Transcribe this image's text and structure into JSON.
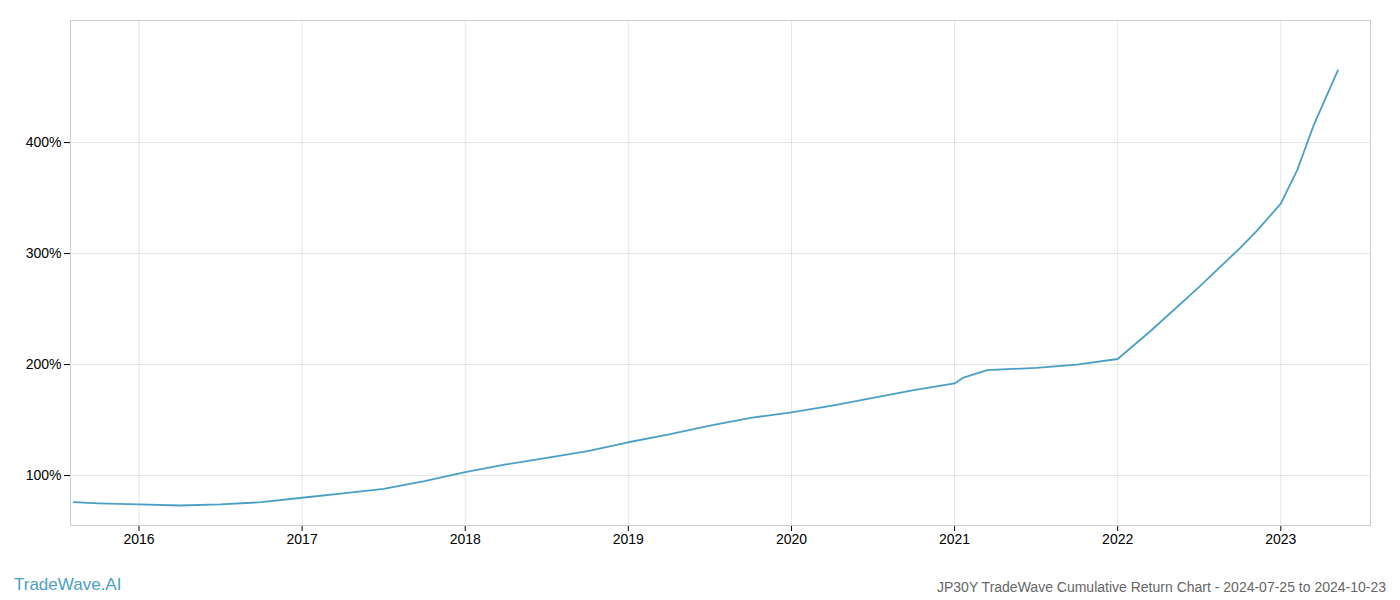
{
  "chart_data": {
    "type": "line",
    "title": "JP30Y TradeWave Cumulative Return Chart - 2024-07-25 to 2024-10-23",
    "annotations": [
      {
        "text": "TradeWave.AI",
        "color": "#4a9fc4"
      }
    ],
    "x": [
      2015.6,
      2015.75,
      2016.0,
      2016.25,
      2016.5,
      2016.75,
      2017.0,
      2017.25,
      2017.5,
      2017.75,
      2018.0,
      2018.25,
      2018.5,
      2018.75,
      2019.0,
      2019.25,
      2019.5,
      2019.75,
      2020.0,
      2020.25,
      2020.5,
      2020.75,
      2021.0,
      2021.05,
      2021.2,
      2021.5,
      2021.75,
      2022.0,
      2022.2,
      2022.5,
      2022.75,
      2022.85,
      2023.0,
      2023.1,
      2023.2,
      2023.35
    ],
    "values": [
      76,
      75,
      74,
      73,
      74,
      76,
      80,
      84,
      88,
      95,
      103,
      110,
      116,
      122,
      130,
      137,
      145,
      152,
      157,
      163,
      170,
      177,
      183,
      188,
      195,
      197,
      200,
      205,
      230,
      270,
      305,
      320,
      345,
      375,
      415,
      465
    ],
    "color": "#4a9fc4",
    "xlim": [
      2015.58,
      2023.55
    ],
    "xticks": [
      2016,
      2017,
      2018,
      2019,
      2020,
      2021,
      2022,
      2023
    ],
    "ylim": [
      55,
      510
    ],
    "yticks": [
      {
        "value": 100,
        "label": "100%"
      },
      {
        "value": 200,
        "label": "200%"
      },
      {
        "value": 300,
        "label": "300%"
      },
      {
        "value": 400,
        "label": "400%"
      }
    ],
    "grid": true
  }
}
